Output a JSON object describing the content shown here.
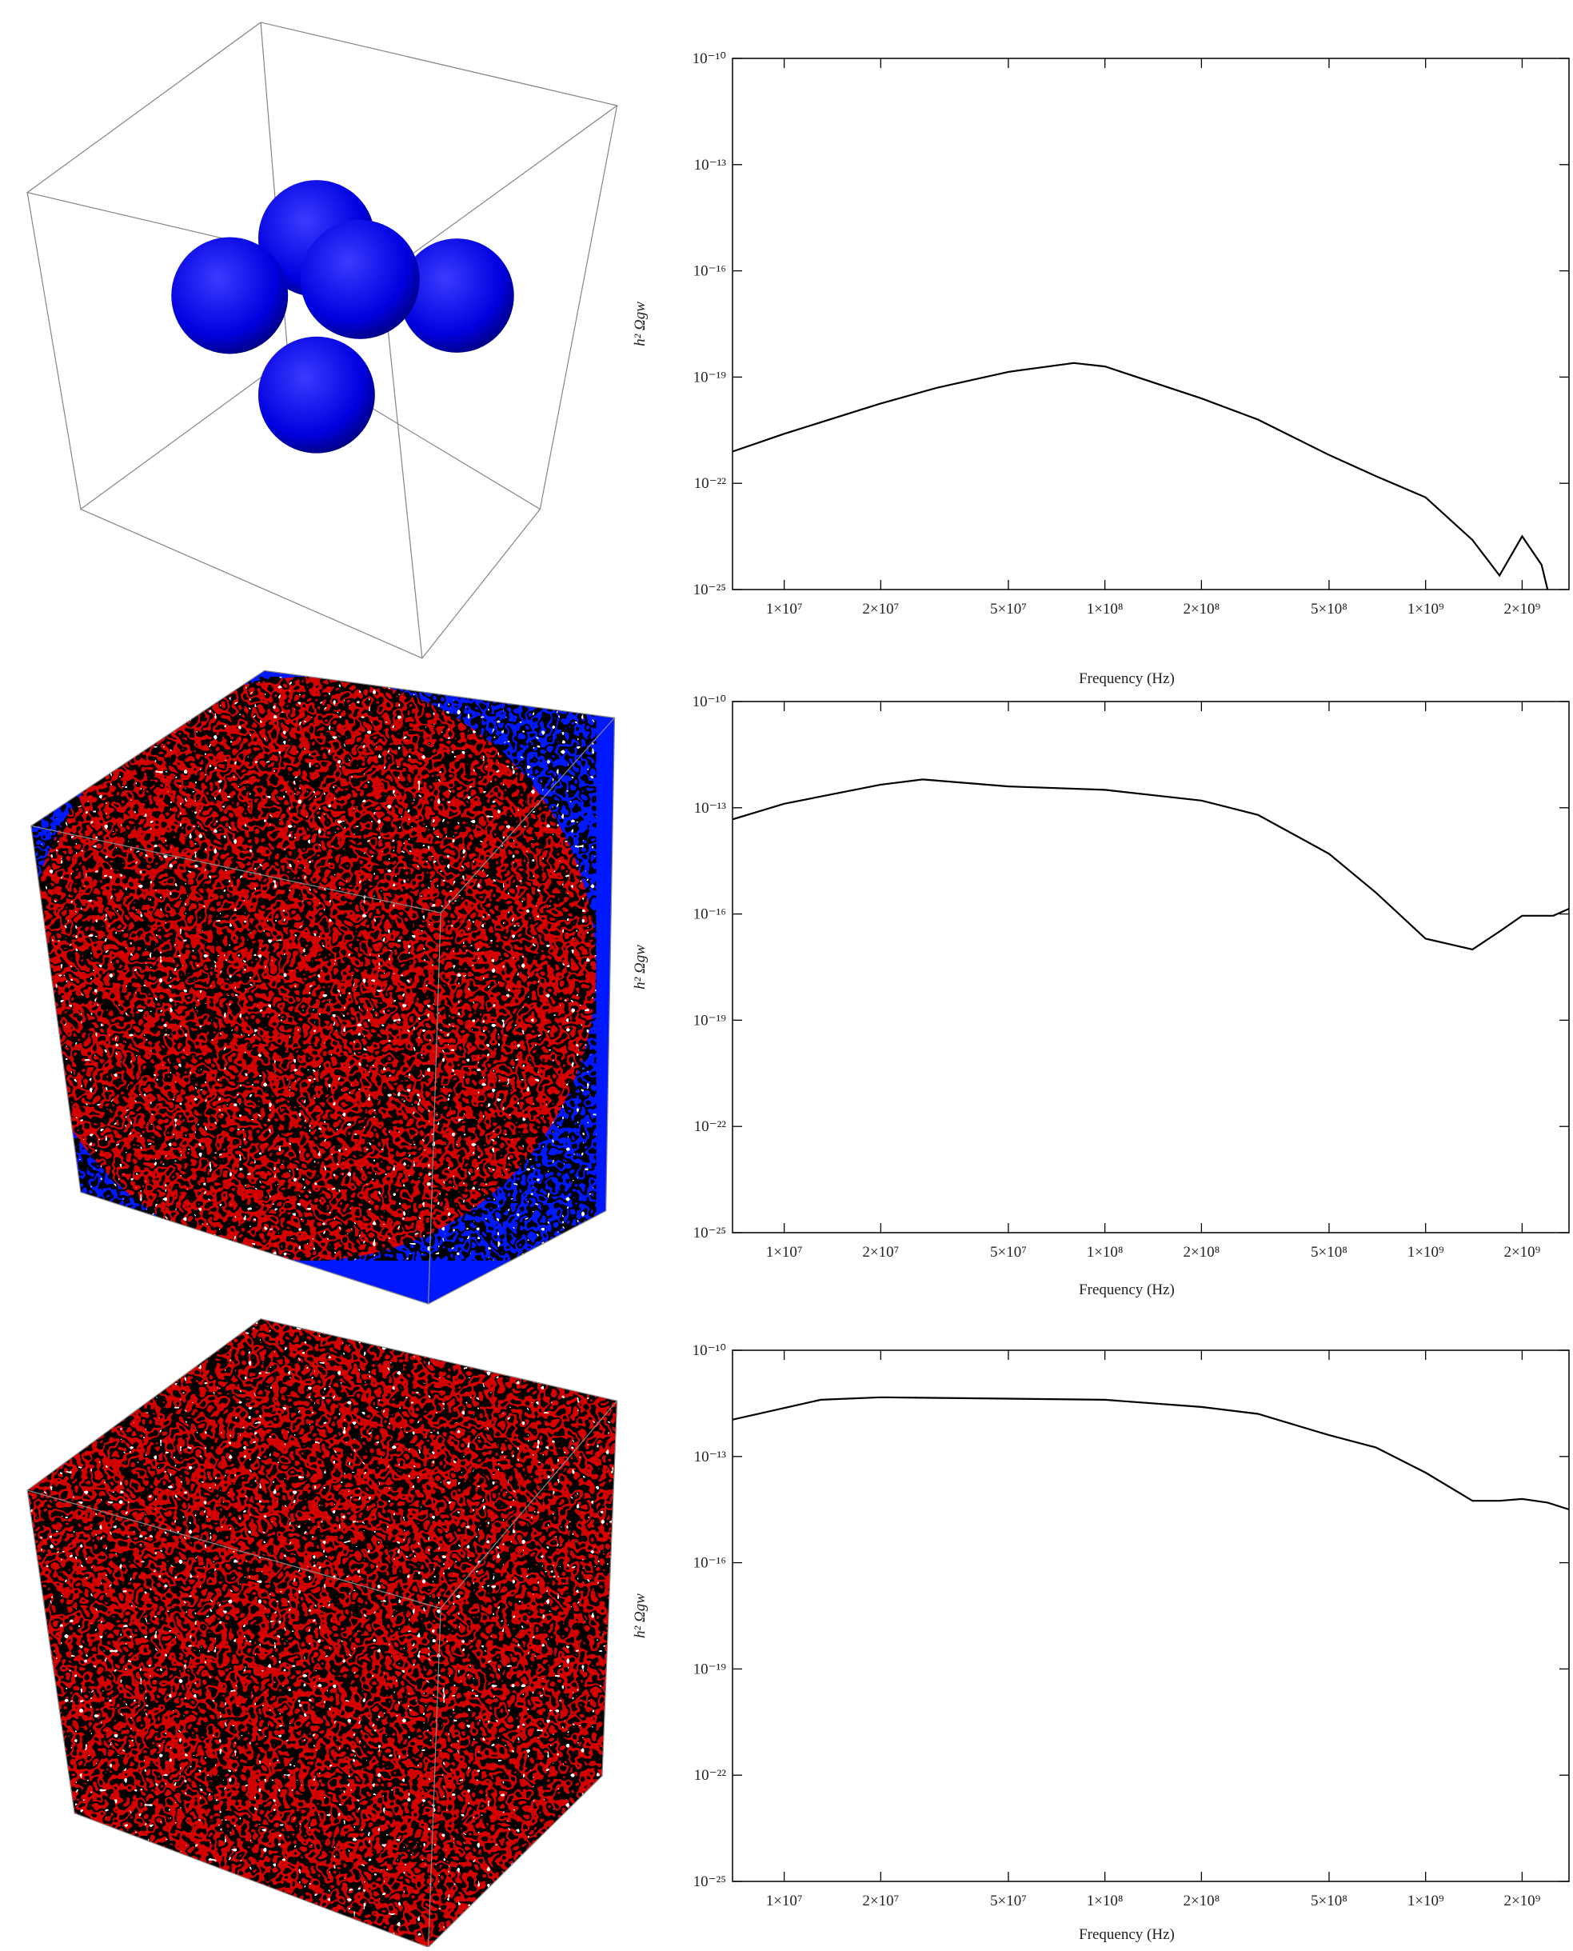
{
  "chart_data": [
    {
      "type": "line",
      "xlabel": "Frequency (Hz)",
      "ylabel": "h² Ωgw",
      "log_x": true,
      "log_y": true,
      "color": "#000000",
      "xlim": [
        6900000,
        2800000000
      ],
      "ylim": [
        1e-25,
        1e-10
      ],
      "xticks": [
        {
          "value": 10000000,
          "label": "1×10⁷"
        },
        {
          "value": 20000000,
          "label": "2×10⁷"
        },
        {
          "value": 50000000,
          "label": "5×10⁷"
        },
        {
          "value": 100000000,
          "label": "1×10⁸"
        },
        {
          "value": 200000000,
          "label": "2×10⁸"
        },
        {
          "value": 500000000,
          "label": "5×10⁸"
        },
        {
          "value": 1000000000,
          "label": "1×10⁹"
        },
        {
          "value": 2000000000,
          "label": "2×10⁹"
        }
      ],
      "yticks": [
        {
          "value": 1e-10,
          "label": "10⁻¹⁰"
        },
        {
          "value": 1e-13,
          "label": "10⁻¹³"
        },
        {
          "value": 1e-16,
          "label": "10⁻¹⁶"
        },
        {
          "value": 1e-19,
          "label": "10⁻¹⁹"
        },
        {
          "value": 1e-22,
          "label": "10⁻²²"
        },
        {
          "value": 1e-25,
          "label": "10⁻²⁵"
        }
      ],
      "x": [
        6900000,
        10000000,
        20000000,
        30000000,
        50000000,
        80000000,
        100000000,
        200000000,
        300000000,
        500000000,
        700000000,
        1000000000,
        1400000000,
        1700000000,
        2000000000,
        2300000000,
        2400000000
      ],
      "values": [
        7.9e-22,
        2.5e-21,
        1.8e-20,
        5e-20,
        1.4e-19,
        2.5e-19,
        2e-19,
        2.5e-20,
        6.3e-21,
        6.3e-22,
        1.6e-22,
        4e-23,
        2.5e-24,
        2.5e-25,
        3.2e-24,
        5e-25,
        1e-25
      ]
    },
    {
      "type": "line",
      "xlabel": "Frequency (Hz)",
      "ylabel": "h² Ωgw",
      "log_x": true,
      "log_y": true,
      "color": "#000000",
      "xlim": [
        6900000,
        2800000000
      ],
      "ylim": [
        1e-25,
        1e-10
      ],
      "xticks": [
        {
          "value": 10000000,
          "label": "1×10⁷"
        },
        {
          "value": 20000000,
          "label": "2×10⁷"
        },
        {
          "value": 50000000,
          "label": "5×10⁷"
        },
        {
          "value": 100000000,
          "label": "1×10⁸"
        },
        {
          "value": 200000000,
          "label": "2×10⁸"
        },
        {
          "value": 500000000,
          "label": "5×10⁸"
        },
        {
          "value": 1000000000,
          "label": "1×10⁹"
        },
        {
          "value": 2000000000,
          "label": "2×10⁹"
        }
      ],
      "yticks": [
        {
          "value": 1e-10,
          "label": "10⁻¹⁰"
        },
        {
          "value": 1e-13,
          "label": "10⁻¹³"
        },
        {
          "value": 1e-16,
          "label": "10⁻¹⁶"
        },
        {
          "value": 1e-19,
          "label": "10⁻¹⁹"
        },
        {
          "value": 1e-22,
          "label": "10⁻²²"
        },
        {
          "value": 1e-25,
          "label": "10⁻²⁵"
        }
      ],
      "x": [
        6900000,
        10000000,
        20000000,
        27000000,
        50000000,
        100000000,
        200000000,
        300000000,
        500000000,
        700000000,
        1000000000,
        1400000000,
        1700000000,
        2000000000,
        2500000000,
        2800000000
      ],
      "values": [
        4.7e-14,
        1.3e-13,
        4.5e-13,
        6.3e-13,
        4e-13,
        3.2e-13,
        1.6e-13,
        6.3e-14,
        5e-15,
        4e-16,
        2e-17,
        1e-17,
        3.2e-17,
        8.9e-17,
        8.9e-17,
        1.4e-16
      ]
    },
    {
      "type": "line",
      "xlabel": "Frequency (Hz)",
      "ylabel": "h² Ωgw",
      "log_x": true,
      "log_y": true,
      "color": "#000000",
      "xlim": [
        6900000,
        2800000000
      ],
      "ylim": [
        1e-25,
        1e-10
      ],
      "xticks": [
        {
          "value": 10000000,
          "label": "1×10⁷"
        },
        {
          "value": 20000000,
          "label": "2×10⁷"
        },
        {
          "value": 50000000,
          "label": "5×10⁷"
        },
        {
          "value": 100000000,
          "label": "1×10⁸"
        },
        {
          "value": 200000000,
          "label": "2×10⁸"
        },
        {
          "value": 500000000,
          "label": "5×10⁸"
        },
        {
          "value": 1000000000,
          "label": "1×10⁹"
        },
        {
          "value": 2000000000,
          "label": "2×10⁹"
        }
      ],
      "yticks": [
        {
          "value": 1e-10,
          "label": "10⁻¹⁰"
        },
        {
          "value": 1e-13,
          "label": "10⁻¹³"
        },
        {
          "value": 1e-16,
          "label": "10⁻¹⁶"
        },
        {
          "value": 1e-19,
          "label": "10⁻¹⁹"
        },
        {
          "value": 1e-22,
          "label": "10⁻²²"
        },
        {
          "value": 1e-25,
          "label": "10⁻²⁵"
        }
      ],
      "x": [
        6900000,
        13000000,
        20000000,
        50000000,
        100000000,
        200000000,
        300000000,
        500000000,
        700000000,
        1000000000,
        1400000000,
        1700000000,
        2000000000,
        2400000000,
        2800000000
      ],
      "values": [
        1.1e-12,
        4e-12,
        4.7e-12,
        4.3e-12,
        4e-12,
        2.5e-12,
        1.6e-12,
        4e-13,
        1.8e-13,
        3.5e-14,
        5.6e-15,
        5.6e-15,
        6.3e-15,
        5e-15,
        3.2e-15
      ]
    }
  ]
}
